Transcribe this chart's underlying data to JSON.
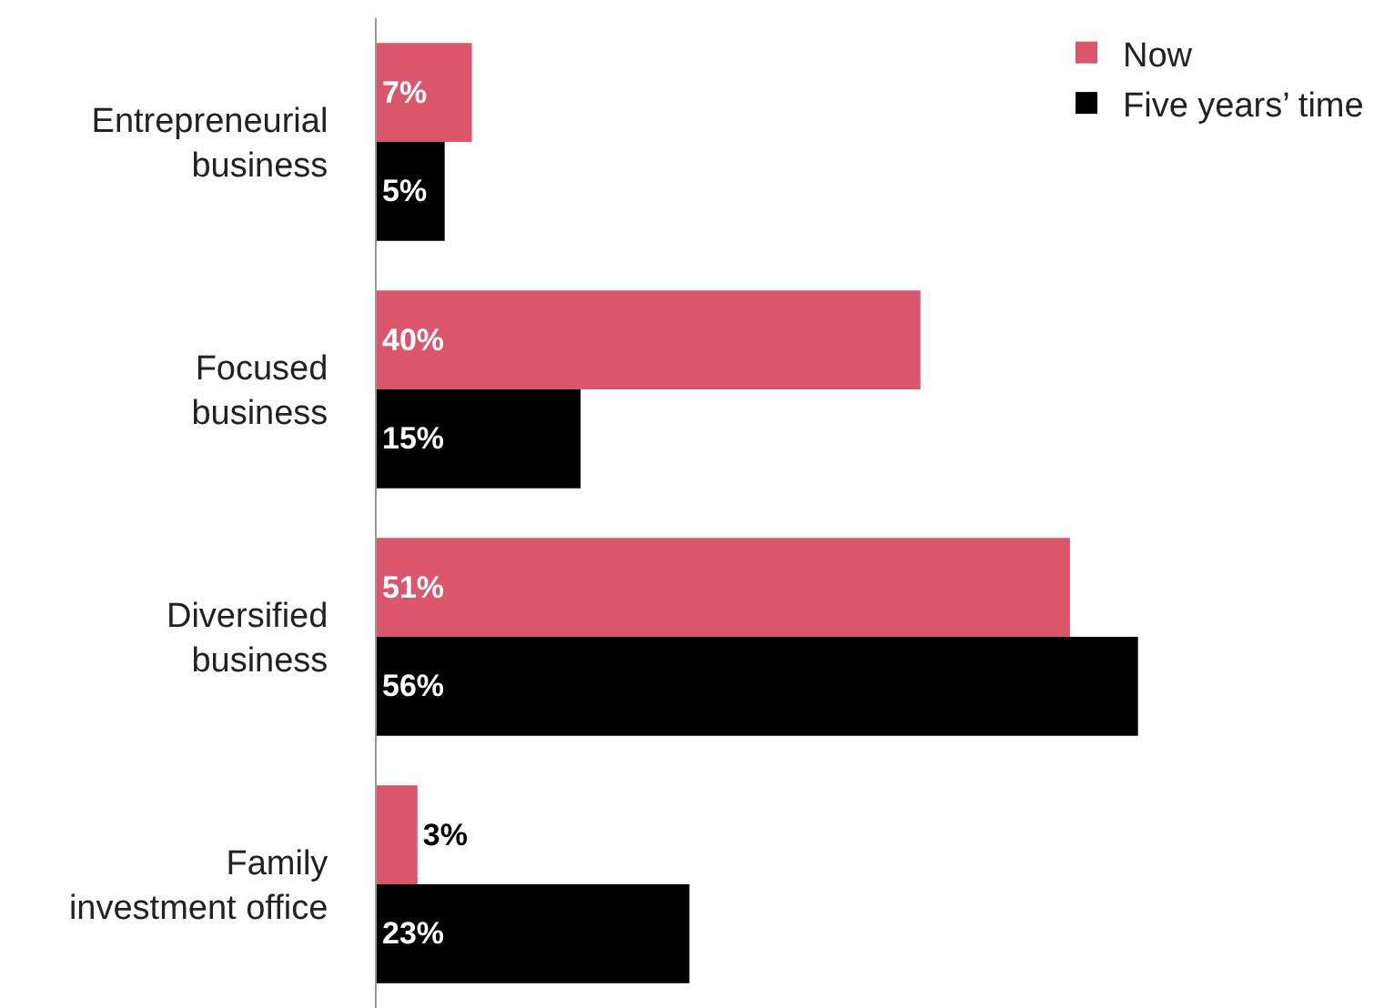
{
  "chart_data": {
    "type": "bar",
    "orientation": "horizontal",
    "categories": [
      "Entrepreneurial business",
      "Focused business",
      "Diversified business",
      "Family investment office"
    ],
    "series": [
      {
        "name": "Now",
        "color": "#dc566b",
        "values": [
          7,
          40,
          51,
          3
        ],
        "value_labels": [
          "7%",
          "40%",
          "51%",
          "3%"
        ]
      },
      {
        "name": "Five years’ time",
        "color": "#000000",
        "values": [
          5,
          15,
          56,
          23
        ],
        "value_labels": [
          "5%",
          "15%",
          "56%",
          "23%"
        ]
      }
    ],
    "legend": "top right"
  }
}
